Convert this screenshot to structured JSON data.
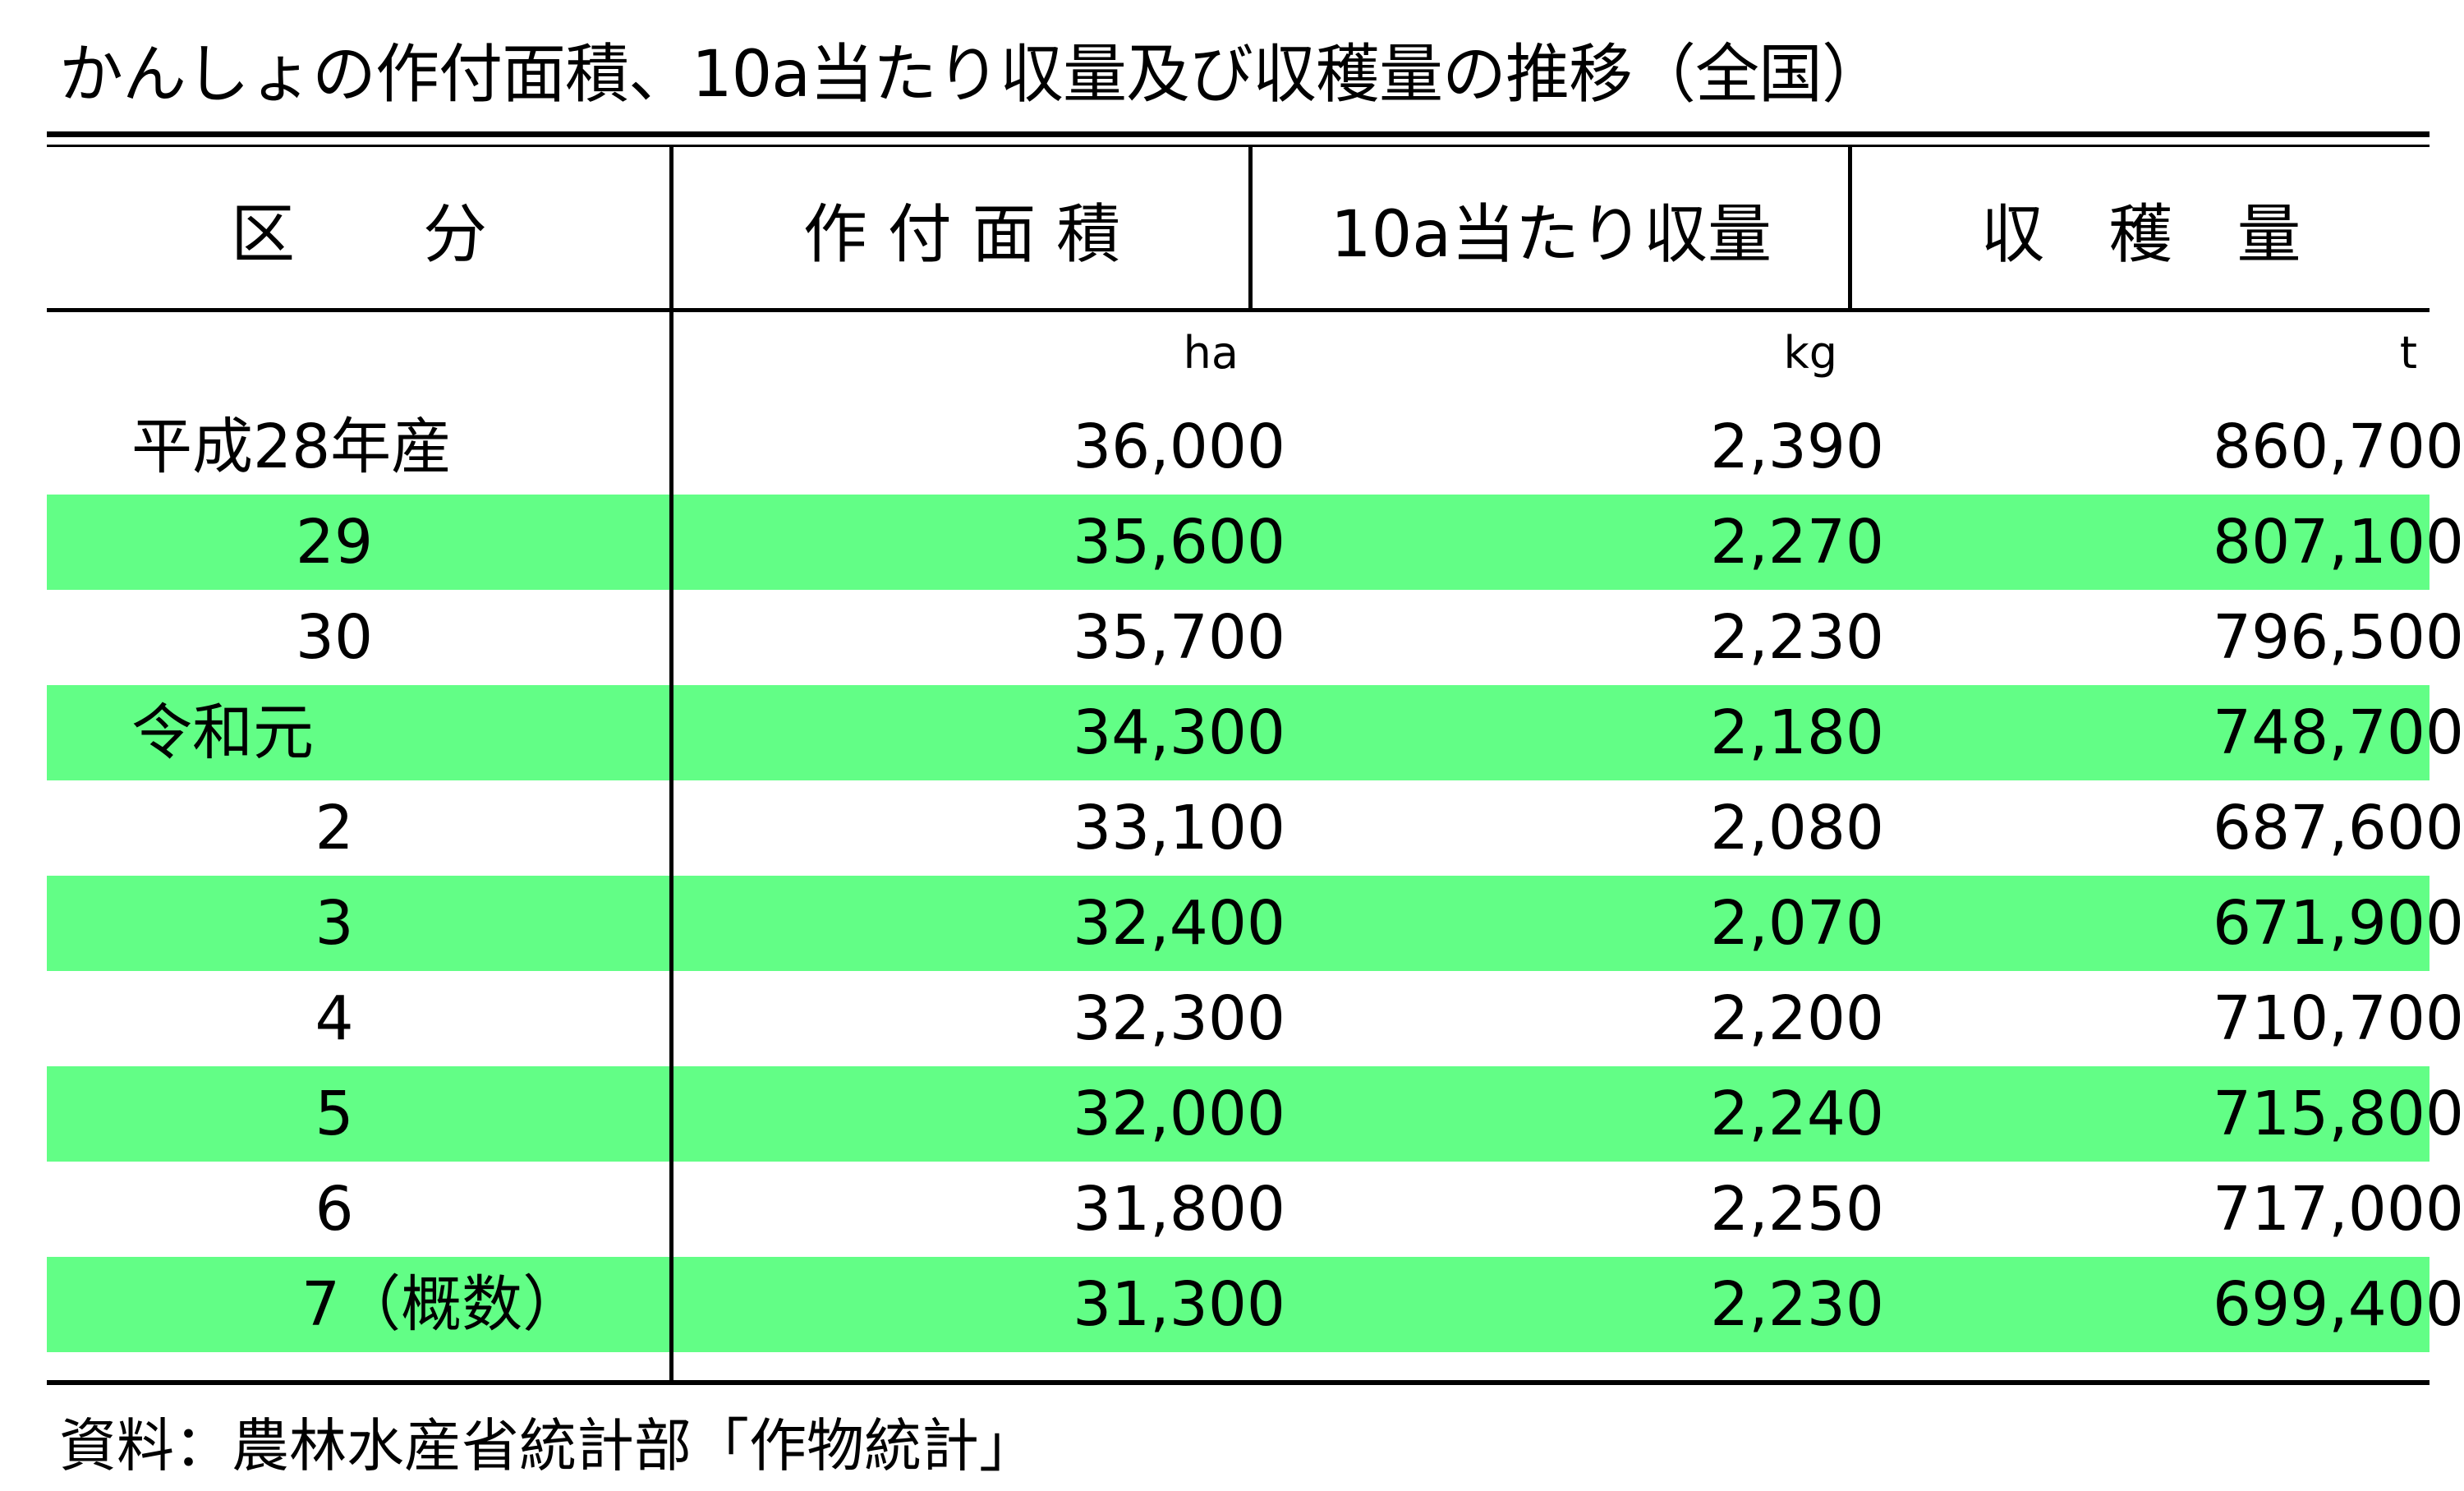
{
  "title": "かんしょの作付面積、10a当たり収量及び収穫量の推移（全国）",
  "headers": {
    "category": "区　　分",
    "area": "作 付 面 積",
    "yield": "10a当たり収量",
    "harvest": "収　穫　量"
  },
  "units": {
    "area": "ha",
    "yield": "kg",
    "harvest": "t"
  },
  "rows": [
    {
      "label": "平成28年産",
      "area": "36,000",
      "yield": "2,390",
      "harvest": "860,700",
      "highlight": false
    },
    {
      "label": "29",
      "area": "35,600",
      "yield": "2,270",
      "harvest": "807,100",
      "highlight": true
    },
    {
      "label": "30",
      "area": "35,700",
      "yield": "2,230",
      "harvest": "796,500",
      "highlight": false
    },
    {
      "label": "令和元",
      "area": "34,300",
      "yield": "2,180",
      "harvest": "748,700",
      "highlight": true
    },
    {
      "label": "2",
      "area": "33,100",
      "yield": "2,080",
      "harvest": "687,600",
      "highlight": false
    },
    {
      "label": "3",
      "area": "32,400",
      "yield": "2,070",
      "harvest": "671,900",
      "highlight": true
    },
    {
      "label": "4",
      "area": "32,300",
      "yield": "2,200",
      "harvest": "710,700",
      "highlight": false
    },
    {
      "label": "5",
      "area": "32,000",
      "yield": "2,240",
      "harvest": "715,800",
      "highlight": true
    },
    {
      "label": "6",
      "area": "31,800",
      "yield": "2,250",
      "harvest": "717,000",
      "highlight": false
    },
    {
      "label": "7（概数）",
      "area": "31,300",
      "yield": "2,230",
      "harvest": "699,400",
      "highlight": true
    }
  ],
  "source": "資料：農林水産省統計部「作物統計」",
  "colors": {
    "highlight_row": "#62fe86"
  }
}
